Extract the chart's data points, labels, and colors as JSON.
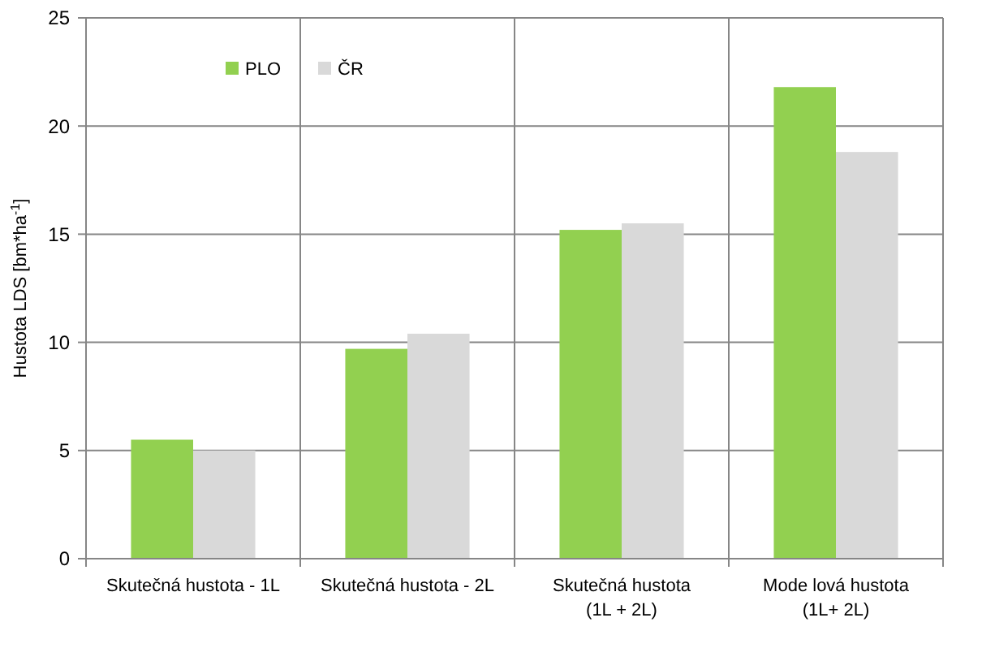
{
  "chart_data": {
    "type": "bar",
    "ylabel": "Hustota LDS [bm*ha$^{-1}$]",
    "categories": [
      "Skutečná hustota - 1L",
      "Skutečná hustota - 2L",
      "Skutečná hustota\n(1L + 2L)",
      "Mode lová hustota\n(1L+ 2L)"
    ],
    "series": [
      {
        "name": "PLO",
        "color": "#92d050",
        "values": [
          5.5,
          9.7,
          15.2,
          21.8
        ]
      },
      {
        "name": "ČR",
        "color": "#d9d9d9",
        "values": [
          5.0,
          10.4,
          15.5,
          18.8
        ]
      }
    ],
    "ylim": [
      0,
      25
    ],
    "yticks": [
      0,
      5,
      10,
      15,
      20,
      25
    ],
    "grid": true,
    "legend": "top left"
  }
}
